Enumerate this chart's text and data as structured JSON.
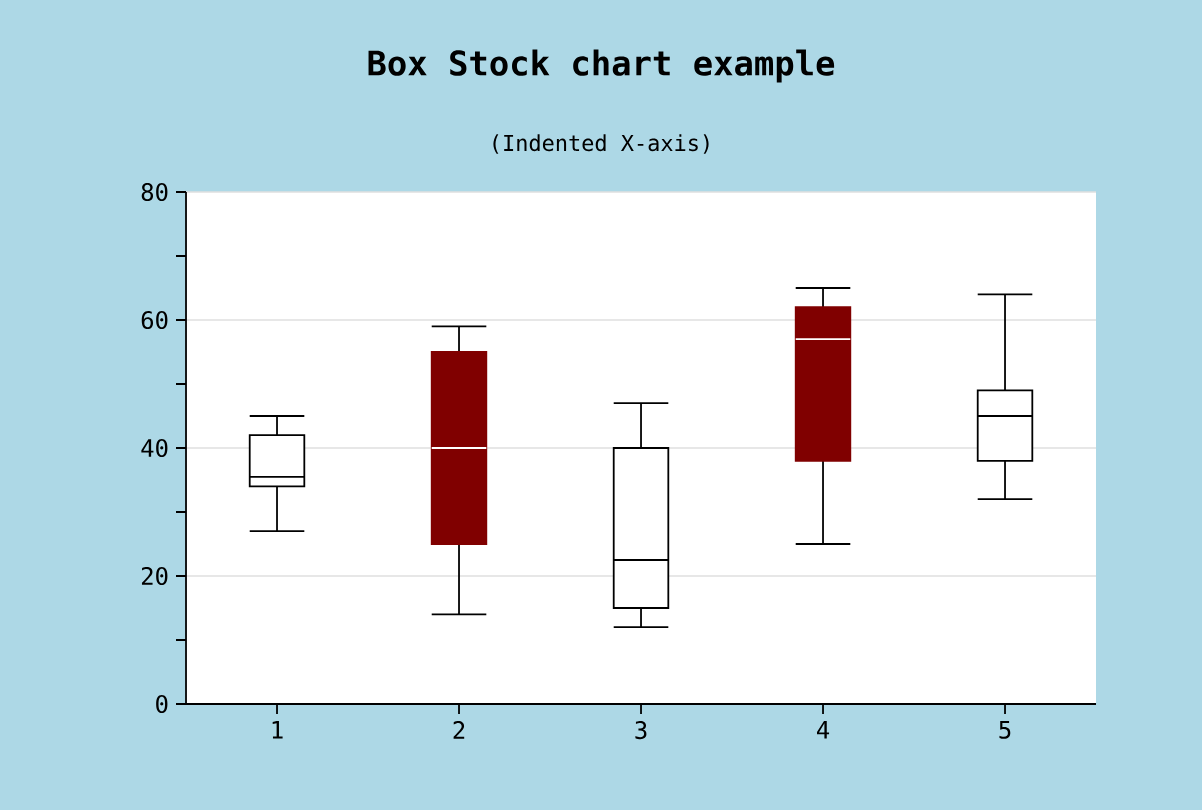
{
  "chart_data": {
    "type": "box",
    "title": "Box Stock chart example",
    "subtitle": "(Indented X-axis)",
    "categories": [
      "1",
      "2",
      "3",
      "4",
      "5"
    ],
    "boxes": [
      {
        "low": 27,
        "q1": 34,
        "median": 35.5,
        "q3": 42,
        "high": 45
      },
      {
        "low": 14,
        "q1": 25,
        "median": 40,
        "q3": 55,
        "high": 59
      },
      {
        "low": 12,
        "q1": 15,
        "median": 22.5,
        "q3": 40,
        "high": 47
      },
      {
        "low": 25,
        "q1": 38,
        "median": 57,
        "q3": 62,
        "high": 65
      },
      {
        "low": 32,
        "q1": 38,
        "median": 45,
        "q3": 49,
        "high": 64
      }
    ],
    "colors": [
      "#ffffff",
      "#800000",
      "#ffffff",
      "#800000",
      "#ffffff"
    ],
    "ylim": [
      0,
      80
    ],
    "yticks": [
      0,
      {
        "value": 10,
        "label": null
      },
      20,
      {
        "value": 30,
        "label": null
      },
      40,
      {
        "value": 50,
        "label": null
      },
      60,
      {
        "value": 70,
        "label": null
      },
      80
    ],
    "grid": "y"
  }
}
